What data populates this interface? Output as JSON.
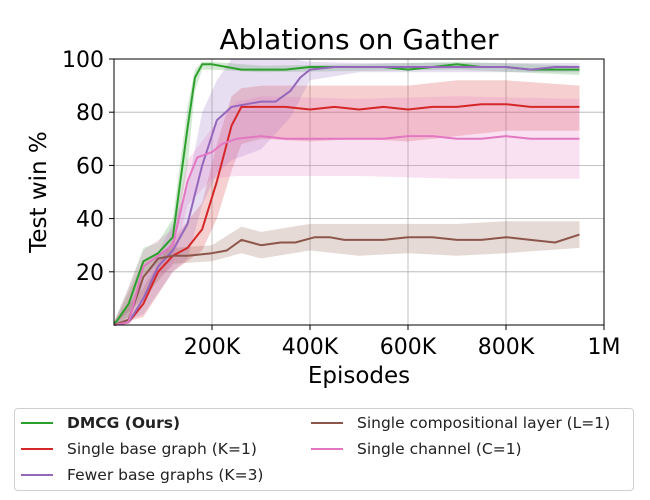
{
  "chart_data": {
    "type": "line",
    "title": "Ablations on Gather",
    "xlabel": "Episodes",
    "ylabel": "Test win %",
    "xlim": [
      0,
      1000000
    ],
    "ylim": [
      0,
      100
    ],
    "xticks": [
      200000,
      400000,
      600000,
      800000,
      1000000
    ],
    "xtick_labels": [
      "200K",
      "400K",
      "600K",
      "800K",
      "1M"
    ],
    "yticks": [
      20,
      40,
      60,
      80,
      100
    ],
    "ytick_labels": [
      "20",
      "40",
      "60",
      "80",
      "100"
    ],
    "grid": true,
    "legend_position": "below",
    "series": [
      {
        "name": "DMCG (Ours)",
        "color": "#2ca02c",
        "bold": true,
        "points": [
          [
            0,
            0
          ],
          [
            30000,
            8
          ],
          [
            60000,
            24
          ],
          [
            90000,
            27
          ],
          [
            120000,
            33
          ],
          [
            150000,
            74
          ],
          [
            165000,
            93
          ],
          [
            180000,
            98
          ],
          [
            200000,
            98
          ],
          [
            230000,
            97
          ],
          [
            260000,
            96
          ],
          [
            300000,
            96
          ],
          [
            350000,
            96
          ],
          [
            400000,
            97
          ],
          [
            450000,
            97
          ],
          [
            500000,
            97
          ],
          [
            550000,
            97
          ],
          [
            600000,
            96
          ],
          [
            650000,
            97
          ],
          [
            700000,
            98
          ],
          [
            750000,
            97
          ],
          [
            800000,
            97
          ],
          [
            850000,
            96
          ],
          [
            900000,
            96
          ],
          [
            950000,
            96
          ]
        ],
        "band": [
          [
            0,
            0,
            1
          ],
          [
            30000,
            3,
            14
          ],
          [
            60000,
            18,
            29
          ],
          [
            90000,
            23,
            31
          ],
          [
            120000,
            27,
            40
          ],
          [
            150000,
            60,
            82
          ],
          [
            165000,
            88,
            96
          ],
          [
            180000,
            96,
            99
          ],
          [
            200000,
            96,
            99
          ],
          [
            300000,
            95,
            97.5
          ],
          [
            500000,
            95.5,
            98
          ],
          [
            700000,
            96,
            99
          ],
          [
            950000,
            94,
            97.5
          ]
        ]
      },
      {
        "name": "Single base graph (K=1)",
        "color": "#d62728",
        "bold": false,
        "points": [
          [
            0,
            0
          ],
          [
            30000,
            1
          ],
          [
            60000,
            8
          ],
          [
            90000,
            20
          ],
          [
            120000,
            26
          ],
          [
            150000,
            29
          ],
          [
            180000,
            36
          ],
          [
            210000,
            54
          ],
          [
            240000,
            75
          ],
          [
            260000,
            82
          ],
          [
            300000,
            82
          ],
          [
            350000,
            82
          ],
          [
            400000,
            81
          ],
          [
            450000,
            82
          ],
          [
            500000,
            81
          ],
          [
            550000,
            82
          ],
          [
            600000,
            81
          ],
          [
            650000,
            82
          ],
          [
            700000,
            82
          ],
          [
            750000,
            83
          ],
          [
            800000,
            83
          ],
          [
            850000,
            82
          ],
          [
            900000,
            82
          ],
          [
            950000,
            82
          ]
        ],
        "band": [
          [
            0,
            0,
            1
          ],
          [
            60000,
            3,
            14
          ],
          [
            120000,
            20,
            32
          ],
          [
            180000,
            28,
            46
          ],
          [
            210000,
            40,
            68
          ],
          [
            240000,
            58,
            86
          ],
          [
            260000,
            68,
            89
          ],
          [
            300000,
            70,
            90
          ],
          [
            400000,
            69,
            90
          ],
          [
            500000,
            70,
            90
          ],
          [
            600000,
            69,
            90
          ],
          [
            700000,
            71,
            92
          ],
          [
            800000,
            73,
            92
          ],
          [
            950000,
            73,
            90
          ]
        ]
      },
      {
        "name": "Fewer base graphs (K=3)",
        "color": "#9467bd",
        "bold": false,
        "points": [
          [
            0,
            0
          ],
          [
            30000,
            1
          ],
          [
            60000,
            10
          ],
          [
            90000,
            22
          ],
          [
            120000,
            28
          ],
          [
            150000,
            38
          ],
          [
            180000,
            60
          ],
          [
            210000,
            77
          ],
          [
            240000,
            82
          ],
          [
            270000,
            83
          ],
          [
            300000,
            84
          ],
          [
            330000,
            84
          ],
          [
            360000,
            88
          ],
          [
            380000,
            93
          ],
          [
            400000,
            96
          ],
          [
            450000,
            97
          ],
          [
            500000,
            97
          ],
          [
            550000,
            97
          ],
          [
            600000,
            97
          ],
          [
            650000,
            97
          ],
          [
            700000,
            97
          ],
          [
            750000,
            97
          ],
          [
            800000,
            97
          ],
          [
            850000,
            96
          ],
          [
            900000,
            97
          ],
          [
            950000,
            97
          ]
        ],
        "band": [
          [
            0,
            0,
            1
          ],
          [
            60000,
            4,
            16
          ],
          [
            120000,
            20,
            38
          ],
          [
            150000,
            25,
            52
          ],
          [
            180000,
            45,
            80
          ],
          [
            210000,
            57,
            92
          ],
          [
            240000,
            62,
            100
          ],
          [
            300000,
            66,
            100
          ],
          [
            360000,
            78,
            100
          ],
          [
            400000,
            92,
            99
          ],
          [
            500000,
            95,
            98.5
          ],
          [
            700000,
            95,
            98.5
          ],
          [
            950000,
            95,
            98.5
          ]
        ]
      },
      {
        "name": "Single compositional layer (L=1)",
        "color": "#8c564b",
        "bold": false,
        "points": [
          [
            0,
            0
          ],
          [
            30000,
            2
          ],
          [
            60000,
            18
          ],
          [
            90000,
            25
          ],
          [
            120000,
            26
          ],
          [
            150000,
            26
          ],
          [
            200000,
            27
          ],
          [
            230000,
            28
          ],
          [
            260000,
            32
          ],
          [
            300000,
            30
          ],
          [
            340000,
            31
          ],
          [
            370000,
            31
          ],
          [
            410000,
            33
          ],
          [
            440000,
            33
          ],
          [
            470000,
            32
          ],
          [
            500000,
            32
          ],
          [
            550000,
            32
          ],
          [
            600000,
            33
          ],
          [
            650000,
            33
          ],
          [
            700000,
            32
          ],
          [
            750000,
            32
          ],
          [
            800000,
            33
          ],
          [
            850000,
            32
          ],
          [
            900000,
            31
          ],
          [
            950000,
            34
          ]
        ],
        "band": [
          [
            0,
            0,
            1
          ],
          [
            60000,
            10,
            24
          ],
          [
            120000,
            23,
            29
          ],
          [
            200000,
            24,
            30
          ],
          [
            260000,
            27,
            37
          ],
          [
            300000,
            25,
            35
          ],
          [
            400000,
            28,
            38
          ],
          [
            500000,
            26,
            38
          ],
          [
            600000,
            27,
            38
          ],
          [
            700000,
            26,
            38
          ],
          [
            800000,
            27,
            39
          ],
          [
            950000,
            29,
            39
          ]
        ]
      },
      {
        "name": "Single channel (C=1)",
        "color": "#e377c2",
        "bold": false,
        "points": [
          [
            0,
            0
          ],
          [
            30000,
            1
          ],
          [
            60000,
            22
          ],
          [
            90000,
            26
          ],
          [
            120000,
            30
          ],
          [
            150000,
            54
          ],
          [
            170000,
            63
          ],
          [
            200000,
            65
          ],
          [
            220000,
            68
          ],
          [
            250000,
            70
          ],
          [
            300000,
            71
          ],
          [
            350000,
            70
          ],
          [
            400000,
            70
          ],
          [
            450000,
            70
          ],
          [
            500000,
            70
          ],
          [
            550000,
            70
          ],
          [
            600000,
            71
          ],
          [
            650000,
            71
          ],
          [
            700000,
            70
          ],
          [
            750000,
            70
          ],
          [
            800000,
            71
          ],
          [
            850000,
            70
          ],
          [
            900000,
            70
          ],
          [
            950000,
            70
          ]
        ],
        "band": [
          [
            0,
            0,
            1
          ],
          [
            60000,
            14,
            28
          ],
          [
            120000,
            22,
            36
          ],
          [
            150000,
            45,
            62
          ],
          [
            200000,
            55,
            74
          ],
          [
            250000,
            56,
            84
          ],
          [
            300000,
            56,
            86
          ],
          [
            500000,
            56,
            85
          ],
          [
            700000,
            55,
            86
          ],
          [
            950000,
            55,
            85
          ]
        ]
      }
    ]
  }
}
